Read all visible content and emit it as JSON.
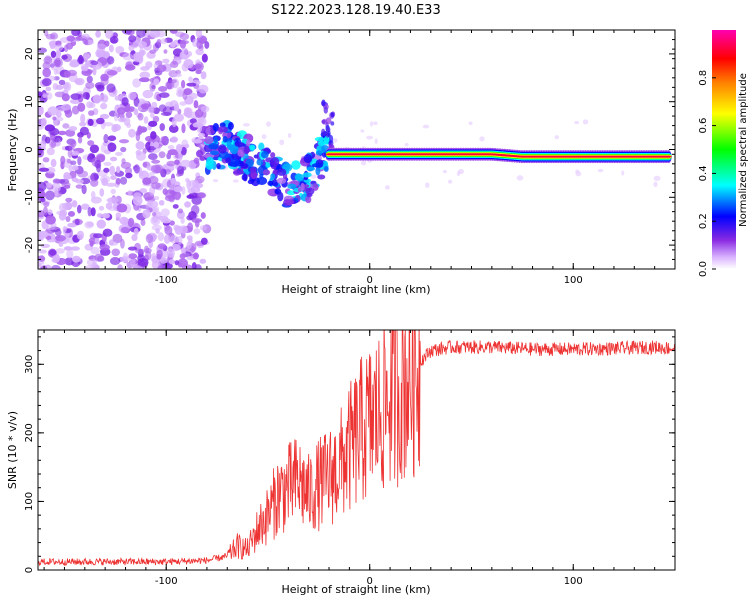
{
  "figure_title": "S122.2023.128.19.40.E33",
  "colorbar": {
    "label": "Normalized spectral amplitude",
    "ticks": [
      0.0,
      0.2,
      0.4,
      0.6,
      0.8
    ],
    "tick_labels": [
      "0.0",
      "0.2",
      "0.4",
      "0.6",
      "0.8"
    ],
    "colormap": [
      "#ffffff",
      "#d9b3ff",
      "#8a2be2",
      "#0000ff",
      "#00ffff",
      "#00ff00",
      "#ffff00",
      "#ff8000",
      "#ff0000",
      "#ff00b0"
    ]
  },
  "chart_data": [
    {
      "type": "heatmap",
      "description_role": "spectrogram",
      "xlabel": "Height of straight line (km)",
      "ylabel": "Frequency (Hz)",
      "xlim": [
        -163,
        150
      ],
      "ylim": [
        -25,
        25
      ],
      "xticks": [
        -100,
        0,
        100
      ],
      "xtick_labels": [
        "-100",
        "0",
        "100"
      ],
      "yticks": [
        -20,
        -10,
        0,
        10,
        20
      ],
      "ytick_labels": [
        "-20",
        "-10",
        "0",
        "10",
        "20"
      ],
      "regions": [
        {
          "name": "noise",
          "x_range": [
            -163,
            -80
          ],
          "y_range": [
            -25,
            25
          ],
          "amplitude": 0.1
        },
        {
          "name": "turbulent",
          "x_range": [
            -80,
            -20
          ],
          "y_center_track": [
            [
              -80,
              0
            ],
            [
              -70,
              1
            ],
            [
              -60,
              -2
            ],
            [
              -50,
              -4
            ],
            [
              -40,
              -8
            ],
            [
              -30,
              -6
            ],
            [
              -22,
              0
            ]
          ],
          "amplitude": 0.45
        },
        {
          "name": "line",
          "x_range": [
            -20,
            148
          ],
          "y_center_track": [
            [
              -20,
              -1
            ],
            [
              0,
              -1
            ],
            [
              20,
              -1
            ],
            [
              60,
              -1
            ],
            [
              75,
              -1.5
            ],
            [
              148,
              -1.5
            ]
          ],
          "amplitude": 0.95
        }
      ]
    },
    {
      "type": "line",
      "xlabel": "Height of straight line (km)",
      "ylabel": "SNR (10 * v/v)",
      "xlim": [
        -163,
        150
      ],
      "ylim": [
        0,
        350
      ],
      "xticks": [
        -100,
        0,
        100
      ],
      "xtick_labels": [
        "-100",
        "0",
        "100"
      ],
      "yticks": [
        0,
        100,
        200,
        300
      ],
      "ytick_labels": [
        "0",
        "100",
        "200",
        "300"
      ],
      "color": "#ee3333",
      "x": [
        -163,
        -140,
        -120,
        -100,
        -80,
        -70,
        -65,
        -60,
        -55,
        -50,
        -45,
        -40,
        -35,
        -30,
        -25,
        -20,
        -15,
        -10,
        -5,
        0,
        5,
        10,
        15,
        20,
        25,
        30,
        40,
        60,
        80,
        100,
        120,
        140,
        150
      ],
      "y": [
        12,
        12,
        12,
        12,
        14,
        20,
        35,
        30,
        60,
        80,
        110,
        120,
        130,
        110,
        125,
        135,
        150,
        175,
        200,
        215,
        230,
        255,
        270,
        285,
        305,
        320,
        325,
        325,
        322,
        322,
        323,
        325,
        323
      ]
    }
  ]
}
